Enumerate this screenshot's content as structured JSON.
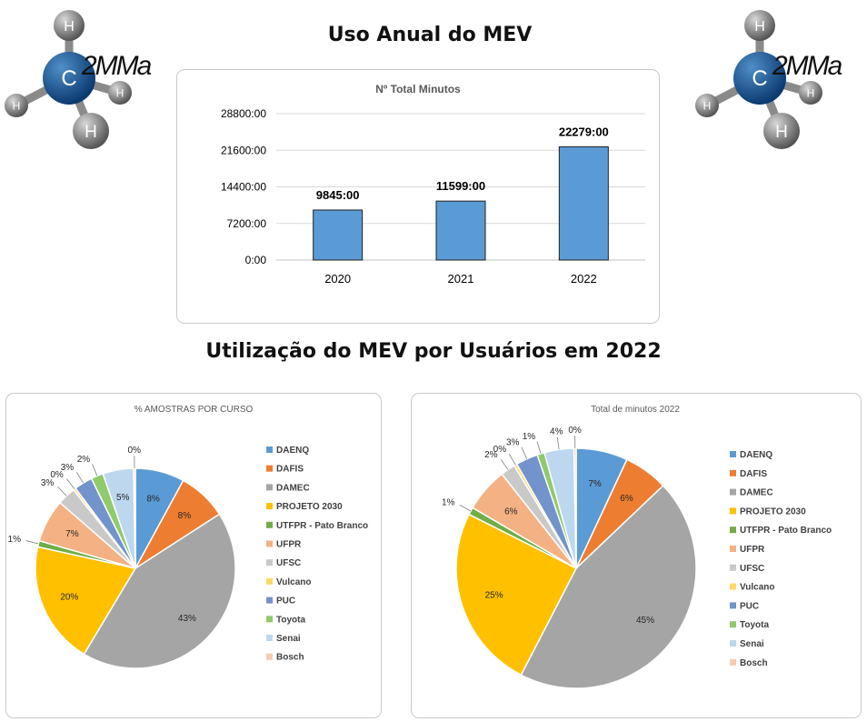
{
  "headings": {
    "top": "Uso Anual do MEV",
    "bottom": "Utilização do MEV por Usuários em 2022"
  },
  "logo": {
    "center_atom": "C",
    "outer_atom": "H",
    "wordmark": "2MMa"
  },
  "chart_data": [
    {
      "type": "bar",
      "title": "Nº Total Minutos",
      "categories": [
        "2020",
        "2021",
        "2022"
      ],
      "values": [
        9845,
        11599,
        22279
      ],
      "data_labels": [
        "9845:00",
        "11599:00",
        "22279:00"
      ],
      "ylim": [
        0,
        28800
      ],
      "y_ticks": [
        0,
        7200,
        14400,
        21600,
        28800
      ],
      "y_tick_labels": [
        "0:00",
        "7200:00",
        "14400:00",
        "21600:00",
        "28800:00"
      ],
      "grid": true,
      "bar_color": "#5b9bd5"
    },
    {
      "type": "pie",
      "title": "% AMOSTRAS POR CURSO",
      "legend_position": "right",
      "slices": [
        {
          "label": "DAENQ",
          "value": 8,
          "text": "8%",
          "color": "#5b9bd5"
        },
        {
          "label": "DAFIS",
          "value": 8,
          "text": "8%",
          "color": "#ed7d31"
        },
        {
          "label": "DAMEC",
          "value": 43,
          "text": "43%",
          "color": "#a5a5a5"
        },
        {
          "label": "PROJETO 2030",
          "value": 20,
          "text": "20%",
          "color": "#ffc000"
        },
        {
          "label": "UTFPR - Pato Branco",
          "value": 1,
          "text": "1%",
          "color": "#70ad47"
        },
        {
          "label": "UFPR",
          "value": 7,
          "text": "7%",
          "color": "#f4b183"
        },
        {
          "label": "UFSC",
          "value": 3,
          "text": "3%",
          "color": "#c9c9c9"
        },
        {
          "label": "Vulcano",
          "value": 0.4,
          "text": "0%",
          "color": "#ffd966"
        },
        {
          "label": "PUC",
          "value": 3,
          "text": "3%",
          "color": "#7293cb"
        },
        {
          "label": "Toyota",
          "value": 2,
          "text": "2%",
          "color": "#8fca6b"
        },
        {
          "label": "Senai",
          "value": 5,
          "text": "5%",
          "color": "#bdd7ee"
        },
        {
          "label": "Bosch",
          "value": 0.3,
          "text": "0%",
          "color": "#f8cbad"
        }
      ]
    },
    {
      "type": "pie",
      "title": "Total de minutos 2022",
      "legend_position": "right",
      "slices": [
        {
          "label": "DAENQ",
          "value": 7,
          "text": "7%",
          "color": "#5b9bd5"
        },
        {
          "label": "DAFIS",
          "value": 6,
          "text": "6%",
          "color": "#ed7d31"
        },
        {
          "label": "DAMEC",
          "value": 45,
          "text": "45%",
          "color": "#a5a5a5"
        },
        {
          "label": "PROJETO 2030",
          "value": 25,
          "text": "25%",
          "color": "#ffc000"
        },
        {
          "label": "UTFPR - Pato Branco",
          "value": 1,
          "text": "1%",
          "color": "#70ad47"
        },
        {
          "label": "UFPR",
          "value": 6,
          "text": "6%",
          "color": "#f4b183"
        },
        {
          "label": "UFSC",
          "value": 2,
          "text": "2%",
          "color": "#c9c9c9"
        },
        {
          "label": "Vulcano",
          "value": 0.4,
          "text": "0%",
          "color": "#ffd966"
        },
        {
          "label": "PUC",
          "value": 3,
          "text": "3%",
          "color": "#7293cb"
        },
        {
          "label": "Toyota",
          "value": 1,
          "text": "1%",
          "color": "#8fca6b"
        },
        {
          "label": "Senai",
          "value": 4,
          "text": "4%",
          "color": "#bdd7ee"
        },
        {
          "label": "Bosch",
          "value": 0.3,
          "text": "0%",
          "color": "#f8cbad"
        }
      ]
    }
  ]
}
